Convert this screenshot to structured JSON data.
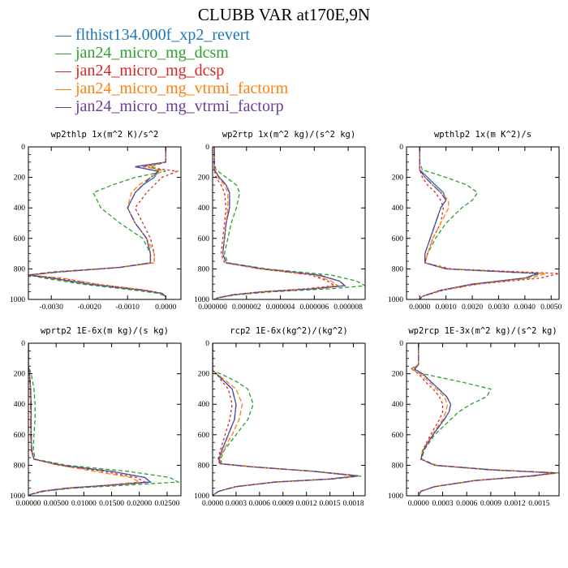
{
  "title": "CLUBB VAR at170E,9N",
  "legend": [
    {
      "label": "flthist134.000f_xp2_revert",
      "color": "#1f77b4",
      "dash": ""
    },
    {
      "label": "jan24_micro_mg_dcsm",
      "color": "#2ca02c",
      "dash": "5,3"
    },
    {
      "label": "jan24_micro_mg_dcsp",
      "color": "#d62728",
      "dash": "3,3"
    },
    {
      "label": "jan24_micro_mg_vtrmi_factorm",
      "color": "#ff7f0e",
      "dash": "6,3"
    },
    {
      "label": "jan24_micro_mg_vtrmi_factorp",
      "color": "#6a3d9a",
      "dash": "8,2,2,2"
    }
  ],
  "chart_data": [
    {
      "type": "line",
      "title": "wp2thlp  1x(m^2 K)/s^2",
      "xlim": [
        -0.0036,
        0.0004
      ],
      "ylim": [
        1000,
        0
      ],
      "xticks": [
        -0.003,
        -0.002,
        -0.001,
        0.0
      ],
      "xtick_labels": [
        "-0.0030",
        "-0.0020",
        "-0.0010",
        "0.0000"
      ],
      "yticks": [
        0,
        200,
        400,
        600,
        800,
        1000
      ],
      "ytick_labels": [
        "0",
        "200",
        "400",
        "600",
        "800",
        "1000"
      ],
      "y": [
        0,
        100,
        130,
        160,
        200,
        250,
        300,
        400,
        500,
        600,
        700,
        760,
        790,
        820,
        840,
        860,
        900,
        940,
        960,
        980,
        1000
      ],
      "series": [
        {
          "x": [
            0.0,
            0.0,
            -0.0008,
            -0.0002,
            -0.0003,
            -0.0006,
            -0.0008,
            -0.001,
            -0.0008,
            -0.0005,
            -0.0004,
            -0.0004,
            -0.0012,
            -0.0028,
            -0.0036,
            -0.003,
            -0.002,
            -0.0006,
            -0.0001,
            0.0,
            0.0
          ]
        },
        {
          "x": [
            0.0,
            0.0,
            -0.0004,
            0.0,
            -0.0008,
            -0.0014,
            -0.0019,
            -0.0017,
            -0.0012,
            -0.0006,
            -0.0004,
            -0.0004,
            -0.0012,
            -0.003,
            -0.0036,
            -0.0032,
            -0.0022,
            -0.0008,
            -0.0002,
            0.0,
            0.0
          ]
        },
        {
          "x": [
            0.0,
            0.0,
            -0.0006,
            0.0003,
            -0.0001,
            -0.0003,
            -0.0005,
            -0.0008,
            -0.0006,
            -0.0004,
            -0.0003,
            -0.0003,
            -0.0012,
            -0.0028,
            -0.0036,
            -0.0028,
            -0.0018,
            -0.0005,
            -0.0001,
            0.0,
            0.0
          ]
        },
        {
          "x": [
            0.0,
            0.0,
            -0.0005,
            -0.0001,
            -0.0004,
            -0.0007,
            -0.0009,
            -0.001,
            -0.0008,
            -0.0005,
            -0.0003,
            -0.0003,
            -0.0012,
            -0.0028,
            -0.0036,
            -0.0027,
            -0.0018,
            -0.0005,
            -0.0001,
            0.0,
            0.0
          ]
        },
        {
          "x": [
            0.0,
            0.0,
            -0.0008,
            -0.0002,
            -0.0004,
            -0.0006,
            -0.0008,
            -0.001,
            -0.0008,
            -0.0005,
            -0.0004,
            -0.0004,
            -0.0012,
            -0.0028,
            -0.0036,
            -0.003,
            -0.002,
            -0.0006,
            -0.0001,
            0.0,
            0.0
          ]
        }
      ]
    },
    {
      "type": "line",
      "title": "wp2rtp  1x(m^2 kg)/(s^2 kg)",
      "xlim": [
        0,
        9e-06
      ],
      "ylim": [
        1000,
        0
      ],
      "xticks": [
        0,
        2e-06,
        4e-06,
        6e-06,
        8e-06
      ],
      "xtick_labels": [
        "0.000000",
        "0.000002",
        "0.000004",
        "0.000006",
        "0.000008"
      ],
      "yticks": [
        0,
        200,
        400,
        600,
        800,
        1000
      ],
      "ytick_labels": [
        "0",
        "200",
        "400",
        "600",
        "800",
        "1000"
      ],
      "y": [
        0,
        100,
        150,
        200,
        250,
        300,
        400,
        500,
        600,
        700,
        760,
        800,
        840,
        880,
        910,
        930,
        950,
        970,
        990,
        1000
      ],
      "series": [
        {
          "x": [
            1e-07,
            1e-07,
            1e-07,
            4e-07,
            8e-07,
            1e-06,
            1e-06,
            8e-07,
            7e-07,
            6e-07,
            8e-07,
            3e-06,
            6.2e-06,
            7.5e-06,
            7.8e-06,
            6e-06,
            3e-06,
            1.2e-06,
            3e-07,
            1e-07
          ]
        },
        {
          "x": [
            1e-07,
            1e-07,
            2e-07,
            8e-07,
            1.4e-06,
            1.6e-06,
            1.4e-06,
            1.1e-06,
            9e-07,
            7e-07,
            9e-07,
            3.2e-06,
            7e-06,
            8.5e-06,
            9e-06,
            7e-06,
            3.5e-06,
            1.4e-06,
            3e-07,
            1e-07
          ]
        },
        {
          "x": [
            1e-07,
            1e-07,
            1e-07,
            2e-07,
            5e-07,
            7e-07,
            8e-07,
            7e-07,
            6e-07,
            5e-07,
            7e-07,
            2.8e-06,
            5.8e-06,
            6.8e-06,
            7.2e-06,
            5.5e-06,
            2.8e-06,
            1.1e-06,
            3e-07,
            1e-07
          ]
        },
        {
          "x": [
            1e-07,
            1e-07,
            1e-07,
            3e-07,
            7e-07,
            9e-07,
            9e-07,
            8e-07,
            7e-07,
            6e-07,
            8e-07,
            2.8e-06,
            6e-06,
            7e-06,
            7.4e-06,
            5.8e-06,
            2.9e-06,
            1.1e-06,
            3e-07,
            1e-07
          ]
        },
        {
          "x": [
            1e-07,
            1e-07,
            1e-07,
            4e-07,
            8e-07,
            1e-06,
            1e-06,
            8e-07,
            7e-07,
            6e-07,
            8e-07,
            3e-06,
            6.3e-06,
            7.5e-06,
            7.8e-06,
            6e-06,
            3e-06,
            1.2e-06,
            3e-07,
            1e-07
          ]
        }
      ]
    },
    {
      "type": "line",
      "title": "wpthlp2  1x(m K^2)/s",
      "xlim": [
        -0.0005,
        0.0053
      ],
      "ylim": [
        1000,
        0
      ],
      "xticks": [
        0,
        0.001,
        0.002,
        0.003,
        0.004,
        0.005
      ],
      "xtick_labels": [
        "0.0000",
        "0.0010",
        "0.0020",
        "0.0030",
        "0.0040",
        "0.0050"
      ],
      "yticks": [
        0,
        200,
        400,
        600,
        800,
        1000
      ],
      "ytick_labels": [
        "0",
        "200",
        "400",
        "600",
        "800",
        "1000"
      ],
      "y": [
        0,
        100,
        150,
        200,
        250,
        300,
        350,
        400,
        500,
        600,
        700,
        760,
        800,
        830,
        860,
        900,
        940,
        980,
        1000
      ],
      "series": [
        {
          "x": [
            0.0,
            0.0,
            0.0,
            0.0003,
            0.0006,
            0.0009,
            0.001,
            0.0008,
            0.0006,
            0.0004,
            0.0002,
            0.0002,
            0.001,
            0.0045,
            0.004,
            0.002,
            0.0008,
            0.0001,
            0.0
          ]
        },
        {
          "x": [
            0.0,
            0.0,
            0.0001,
            0.001,
            0.0018,
            0.0022,
            0.002,
            0.0016,
            0.001,
            0.0006,
            0.0003,
            0.0002,
            0.001,
            0.0046,
            0.004,
            0.002,
            0.0008,
            0.0001,
            0.0
          ]
        },
        {
          "x": [
            0.0,
            0.0,
            0.0,
            0.0001,
            0.0003,
            0.0006,
            0.0008,
            0.0009,
            0.0008,
            0.0005,
            0.0003,
            0.0002,
            0.0012,
            0.0053,
            0.0046,
            0.0022,
            0.0009,
            0.0001,
            0.0
          ]
        },
        {
          "x": [
            0.0,
            0.0,
            0.0,
            0.0002,
            0.0005,
            0.0008,
            0.0011,
            0.0011,
            0.0008,
            0.0005,
            0.0003,
            0.0002,
            0.0011,
            0.0048,
            0.0042,
            0.0022,
            0.0008,
            0.0001,
            0.0
          ]
        },
        {
          "x": [
            0.0,
            0.0,
            0.0,
            0.0002,
            0.0005,
            0.0008,
            0.001,
            0.0008,
            0.0006,
            0.0004,
            0.0002,
            0.0002,
            0.001,
            0.0045,
            0.004,
            0.002,
            0.0008,
            0.0001,
            0.0
          ]
        }
      ]
    },
    {
      "type": "line",
      "title": "wprtp2  1E-6x(m kg)/(s kg)",
      "xlim": [
        0,
        0.0275
      ],
      "ylim": [
        1000,
        0
      ],
      "xticks": [
        0,
        0.005,
        0.01,
        0.015,
        0.02,
        0.025
      ],
      "xtick_labels": [
        "0.00000",
        "0.00500",
        "0.01000",
        "0.01500",
        "0.02000",
        "0.02500"
      ],
      "yticks": [
        0,
        200,
        400,
        600,
        800,
        1000
      ],
      "ytick_labels": [
        "0",
        "200",
        "400",
        "600",
        "800",
        "1000"
      ],
      "y": [
        0,
        150,
        200,
        300,
        400,
        500,
        600,
        700,
        760,
        800,
        840,
        880,
        910,
        930,
        950,
        970,
        990,
        1000
      ],
      "series": [
        {
          "x": [
            0.0,
            0.0,
            0.0002,
            0.0004,
            0.0005,
            0.0005,
            0.0005,
            0.0006,
            0.001,
            0.006,
            0.015,
            0.021,
            0.022,
            0.015,
            0.007,
            0.0025,
            0.0005,
            0.0
          ]
        },
        {
          "x": [
            0.0,
            0.0,
            0.0005,
            0.001,
            0.0012,
            0.0012,
            0.001,
            0.0009,
            0.0012,
            0.007,
            0.018,
            0.0255,
            0.027,
            0.018,
            0.008,
            0.003,
            0.0005,
            0.0
          ]
        },
        {
          "x": [
            0.0,
            0.0,
            0.0002,
            0.0003,
            0.0004,
            0.0004,
            0.0004,
            0.0005,
            0.0009,
            0.0055,
            0.0135,
            0.0195,
            0.021,
            0.0145,
            0.0068,
            0.0024,
            0.0005,
            0.0
          ]
        },
        {
          "x": [
            0.0,
            0.0,
            0.0002,
            0.0003,
            0.0004,
            0.0004,
            0.0004,
            0.0005,
            0.0009,
            0.0055,
            0.012,
            0.0185,
            0.02,
            0.014,
            0.0065,
            0.0024,
            0.0005,
            0.0
          ]
        },
        {
          "x": [
            0.0,
            0.0,
            0.0002,
            0.0004,
            0.0005,
            0.0005,
            0.0005,
            0.0006,
            0.001,
            0.006,
            0.015,
            0.021,
            0.022,
            0.015,
            0.007,
            0.0025,
            0.0005,
            0.0
          ]
        }
      ]
    },
    {
      "type": "line",
      "title": "rcp2  1E-6x(kg^2)/(kg^2)",
      "xlim": [
        0,
        0.00195
      ],
      "ylim": [
        1000,
        0
      ],
      "xticks": [
        0,
        0.0003,
        0.0006,
        0.0009,
        0.0012,
        0.0015,
        0.0018
      ],
      "xtick_labels": [
        "0.0000",
        "0.0003",
        "0.0006",
        "0.0009",
        "0.0012",
        "0.0015",
        "0.0018"
      ],
      "yticks": [
        0,
        200,
        400,
        600,
        800,
        1000
      ],
      "ytick_labels": [
        "0",
        "200",
        "400",
        "600",
        "800",
        "1000"
      ],
      "y": [
        0,
        180,
        200,
        250,
        300,
        400,
        500,
        600,
        700,
        760,
        790,
        810,
        840,
        870,
        890,
        910,
        940,
        970,
        990,
        1000
      ],
      "series": [
        {
          "x": [
            0.0,
            0.0,
            5e-05,
            0.00015,
            0.00025,
            0.0003,
            0.00028,
            0.0002,
            0.00012,
            8e-05,
            0.0001,
            0.0005,
            0.0013,
            0.00185,
            0.0015,
            0.0008,
            0.0003,
            8e-05,
            2e-05,
            0.0
          ]
        },
        {
          "x": [
            0.0,
            0.0,
            0.0001,
            0.0003,
            0.00045,
            0.00052,
            0.00045,
            0.0003,
            0.00015,
            0.0001,
            0.00012,
            0.00052,
            0.00132,
            0.0019,
            0.00155,
            0.00082,
            0.0003,
            8e-05,
            2e-05,
            0.0
          ]
        },
        {
          "x": [
            0.0,
            0.0,
            5e-05,
            0.00012,
            0.0002,
            0.00025,
            0.00022,
            0.00016,
            0.0001,
            7e-05,
            9e-05,
            0.00048,
            0.00128,
            0.00185,
            0.0015,
            0.00078,
            0.00029,
            8e-05,
            2e-05,
            0.0
          ]
        },
        {
          "x": [
            0.0,
            0.0,
            5e-05,
            0.00018,
            0.0003,
            0.00038,
            0.00034,
            0.00025,
            0.00014,
            9e-05,
            0.0001,
            0.0005,
            0.0013,
            0.00187,
            0.00152,
            0.0008,
            0.0003,
            8e-05,
            2e-05,
            0.0
          ]
        },
        {
          "x": [
            0.0,
            0.0,
            5e-05,
            0.00015,
            0.00025,
            0.0003,
            0.00028,
            0.0002,
            0.00012,
            8e-05,
            0.0001,
            0.0005,
            0.0013,
            0.00186,
            0.0015,
            0.0008,
            0.0003,
            8e-05,
            2e-05,
            0.0
          ]
        }
      ]
    },
    {
      "type": "line",
      "title": "wp2rcp  1E-3x(m^2 kg)/(s^2 kg)",
      "xlim": [
        -0.00015,
        0.00175
      ],
      "ylim": [
        1000,
        0
      ],
      "xticks": [
        0,
        0.0003,
        0.0006,
        0.0009,
        0.0012,
        0.0015
      ],
      "xtick_labels": [
        "0.0000",
        "0.0003",
        "0.0006",
        "0.0009",
        "0.0012",
        "0.0015"
      ],
      "yticks": [
        0,
        200,
        400,
        600,
        800,
        1000
      ],
      "ytick_labels": [
        "0",
        "200",
        "400",
        "600",
        "800",
        "1000"
      ],
      "y": [
        0,
        140,
        170,
        200,
        250,
        300,
        350,
        400,
        450,
        500,
        600,
        700,
        760,
        800,
        830,
        850,
        870,
        900,
        940,
        970,
        1000
      ],
      "series": [
        {
          "x": [
            0.0,
            0.0,
            -5e-05,
            5e-05,
            0.00015,
            0.00025,
            0.00035,
            0.0004,
            0.00038,
            0.00032,
            0.00018,
            6e-05,
            3e-05,
            0.0002,
            0.0009,
            0.0017,
            0.0014,
            0.0007,
            0.0002,
            3e-05,
            0.0
          ]
        },
        {
          "x": [
            0.0,
            0.0,
            -0.0001,
            5e-05,
            0.0005,
            0.0009,
            0.00085,
            0.00065,
            0.0005,
            0.0004,
            0.0002,
            7e-05,
            4e-05,
            0.00022,
            0.00095,
            0.00175,
            0.00145,
            0.00072,
            0.0002,
            3e-05,
            0.0
          ]
        },
        {
          "x": [
            0.0,
            0.0,
            -8e-05,
            0.0,
            8e-05,
            0.00018,
            0.00026,
            0.0003,
            0.0003,
            0.00026,
            0.00015,
            5e-05,
            3e-05,
            0.0002,
            0.0009,
            0.00172,
            0.00142,
            0.0007,
            0.0002,
            3e-05,
            0.0
          ]
        },
        {
          "x": [
            0.0,
            0.0,
            -8e-05,
            2e-05,
            0.00012,
            0.00022,
            0.00032,
            0.00036,
            0.00034,
            0.0003,
            0.00017,
            5e-05,
            3e-05,
            0.0002,
            0.00092,
            0.00172,
            0.00142,
            0.0007,
            0.0002,
            3e-05,
            0.0
          ]
        },
        {
          "x": [
            0.0,
            0.0,
            -5e-05,
            5e-05,
            0.00015,
            0.00025,
            0.00035,
            0.0004,
            0.00038,
            0.00032,
            0.00018,
            6e-05,
            3e-05,
            0.0002,
            0.0009,
            0.0017,
            0.0014,
            0.0007,
            0.0002,
            3e-05,
            0.0
          ]
        }
      ]
    }
  ]
}
